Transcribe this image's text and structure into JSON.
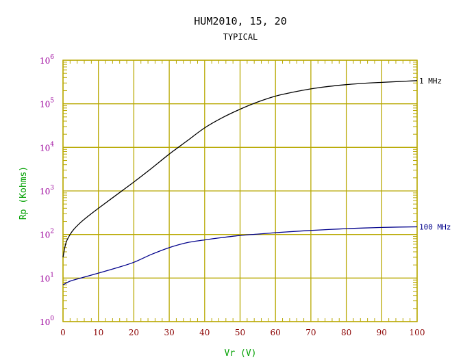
{
  "chart_data": {
    "type": "line",
    "title": "HUM2010, 15, 20",
    "subtitle": "TYPICAL",
    "xlabel": "Vr (V)",
    "ylabel": "Rp (Kohms)",
    "xlim": [
      0,
      100
    ],
    "ylim": [
      1,
      1000000
    ],
    "y_scale": "log",
    "grid": true,
    "x_ticks": [
      "0",
      "10",
      "20",
      "30",
      "40",
      "50",
      "60",
      "70",
      "80",
      "90",
      "100"
    ],
    "y_ticks": [
      {
        "base": "10",
        "exp": "0"
      },
      {
        "base": "10",
        "exp": "1"
      },
      {
        "base": "10",
        "exp": "2"
      },
      {
        "base": "10",
        "exp": "3"
      },
      {
        "base": "10",
        "exp": "4"
      },
      {
        "base": "10",
        "exp": "5"
      },
      {
        "base": "10",
        "exp": "6"
      }
    ],
    "series": [
      {
        "name": "1 MHz",
        "color": "#000000",
        "x": [
          0,
          0.5,
          1,
          2,
          3,
          5,
          7,
          10,
          15,
          20,
          25,
          30,
          35,
          40,
          45,
          50,
          55,
          60,
          65,
          70,
          75,
          80,
          85,
          90,
          95,
          100
        ],
        "y": [
          30,
          50,
          70,
          100,
          130,
          190,
          260,
          400,
          800,
          1600,
          3300,
          7000,
          14000,
          28000,
          48000,
          75000,
          110000,
          150000,
          185000,
          220000,
          250000,
          275000,
          295000,
          310000,
          325000,
          340000
        ]
      },
      {
        "name": "100 MHz",
        "color": "#00008b",
        "x": [
          0,
          2,
          5,
          10,
          15,
          20,
          25,
          30,
          35,
          40,
          45,
          50,
          55,
          60,
          65,
          70,
          75,
          80,
          85,
          90,
          95,
          100
        ],
        "y": [
          7,
          8.5,
          10,
          13,
          17,
          23,
          35,
          50,
          65,
          75,
          85,
          95,
          102,
          110,
          117,
          124,
          130,
          136,
          141,
          145,
          148,
          150
        ]
      }
    ]
  },
  "colors": {
    "grid": "#b8a800",
    "frame": "#b8a800",
    "x_tick_label": "#8b0000",
    "y_tick_label": "#9b009b",
    "axis_title": "#00a000",
    "plot_bg": "#ffffff"
  }
}
